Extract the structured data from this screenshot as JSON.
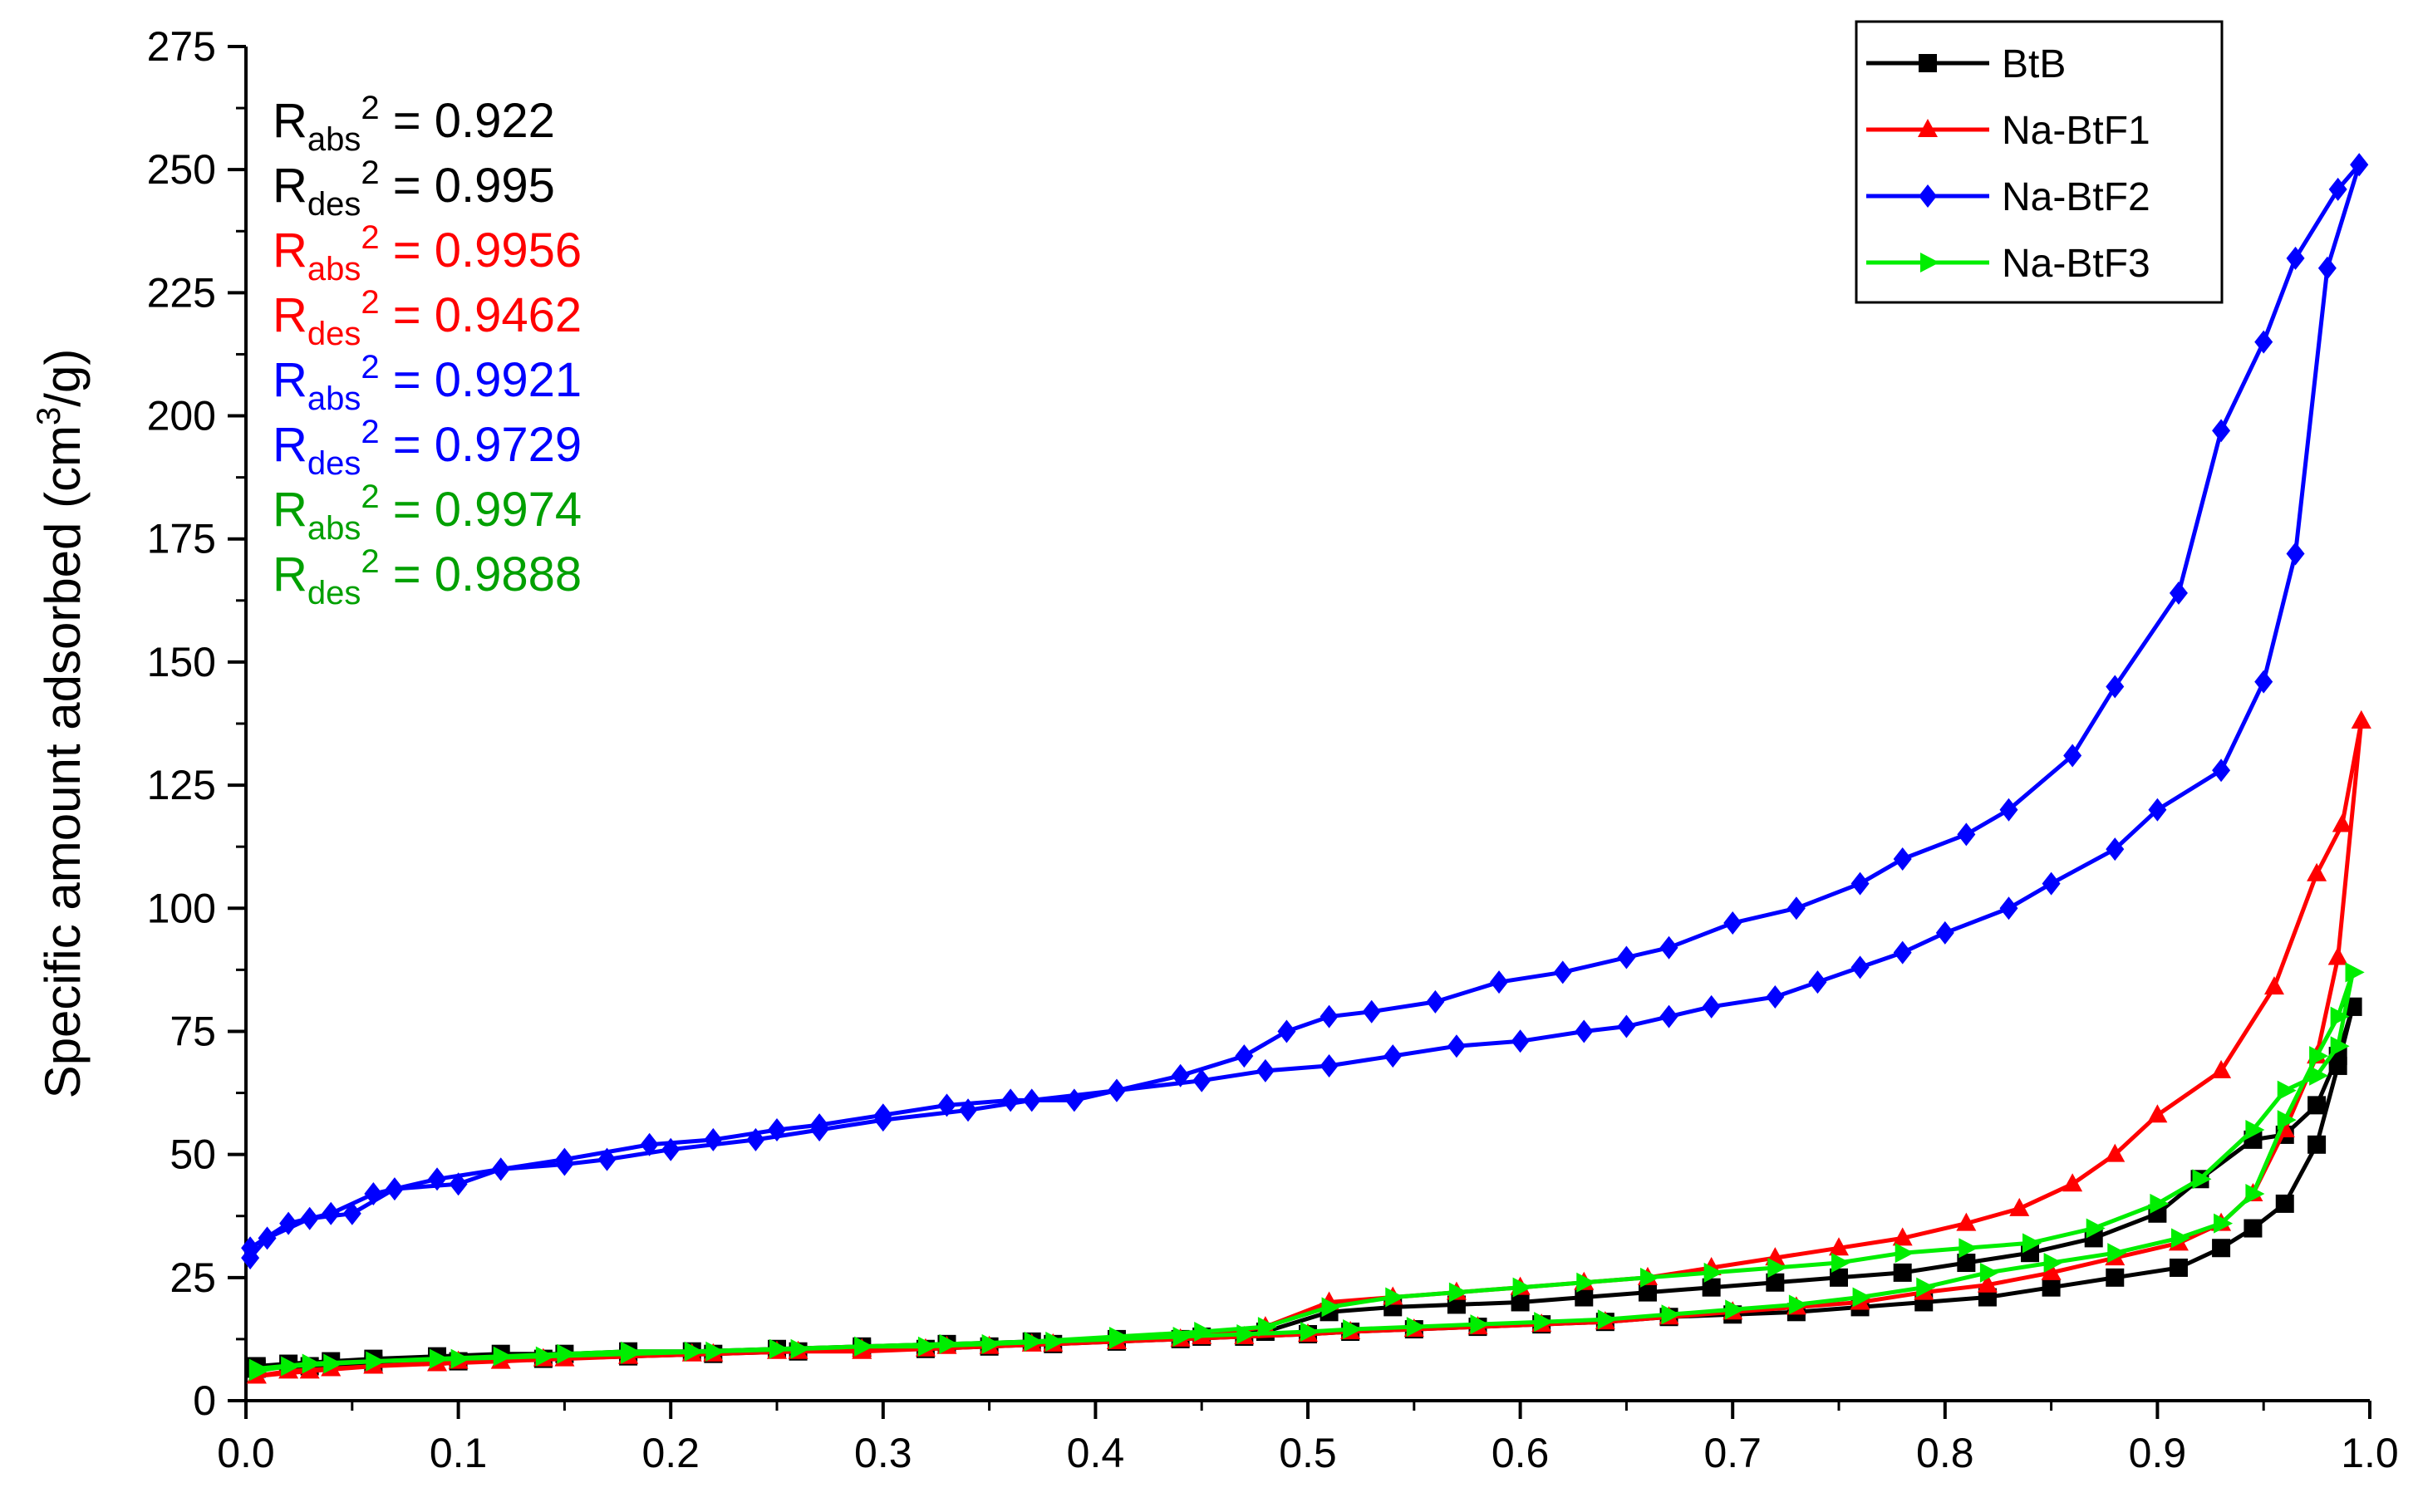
{
  "chart_data": {
    "type": "line",
    "title": "",
    "xlabel": "",
    "ylabel": "Specific amount adsorbed (cm³/g)",
    "xlim": [
      0.0,
      1.0
    ],
    "ylim": [
      0,
      275
    ],
    "x_ticks": [
      "0.0",
      "0.1",
      "0.2",
      "0.3",
      "0.4",
      "0.5",
      "0.6",
      "0.7",
      "0.8",
      "0.9",
      "1.0"
    ],
    "y_ticks": [
      "0",
      "25",
      "50",
      "75",
      "100",
      "125",
      "150",
      "175",
      "200",
      "225",
      "250",
      "275"
    ],
    "legend_position": "top-right",
    "grid": false,
    "annotations": [
      {
        "base": "R",
        "sub": "abs",
        "sup": "2",
        "value": "= 0.922",
        "color": "#000000"
      },
      {
        "base": "R",
        "sub": "des",
        "sup": "2",
        "value": "= 0.995",
        "color": "#000000"
      },
      {
        "base": "R",
        "sub": "abs",
        "sup": "2",
        "value": "= 0.9956",
        "color": "#ff0000"
      },
      {
        "base": "R",
        "sub": "des",
        "sup": "2",
        "value": "= 0.9462",
        "color": "#ff0000"
      },
      {
        "base": "R",
        "sub": "abs",
        "sup": "2",
        "value": "= 0.9921",
        "color": "#0000ff"
      },
      {
        "base": "R",
        "sub": "des",
        "sup": "2",
        "value": "= 0.9729",
        "color": "#0000ff"
      },
      {
        "base": "R",
        "sub": "abs",
        "sup": "2",
        "value": "= 0.9974",
        "color": "#00a000"
      },
      {
        "base": "R",
        "sub": "des",
        "sup": "2",
        "value": "= 0.9888",
        "color": "#00a000"
      }
    ],
    "series": [
      {
        "name": "BtB",
        "color": "#000000",
        "marker": "square",
        "adsorption": {
          "x": [
            0.005,
            0.02,
            0.04,
            0.06,
            0.09,
            0.12,
            0.15,
            0.18,
            0.21,
            0.25,
            0.29,
            0.33,
            0.37,
            0.41,
            0.45,
            0.48,
            0.51,
            0.54,
            0.57,
            0.6,
            0.63,
            0.66,
            0.69,
            0.72,
            0.75,
            0.78,
            0.81,
            0.84,
            0.87,
            0.9,
            0.92,
            0.945,
            0.96,
            0.975,
            0.985,
            0.992
          ],
          "y": [
            7,
            7.5,
            8,
            8.5,
            9,
            9.5,
            9.5,
            10,
            10,
            10.5,
            11,
            11.5,
            12,
            12.5,
            13,
            14,
            18,
            19,
            19.5,
            20,
            21,
            22,
            23,
            24,
            25,
            26,
            28,
            30,
            33,
            38,
            45,
            53,
            54,
            60,
            70,
            80
          ]
        },
        "desorption": {
          "x": [
            0.992,
            0.985,
            0.975,
            0.96,
            0.945,
            0.93,
            0.91,
            0.88,
            0.85,
            0.82,
            0.79,
            0.76,
            0.73,
            0.7,
            0.67,
            0.64,
            0.61,
            0.58,
            0.55,
            0.52,
            0.5,
            0.47,
            0.44,
            0.41,
            0.38,
            0.35,
            0.32,
            0.29,
            0.26,
            0.22,
            0.18,
            0.14,
            0.1,
            0.06,
            0.03,
            0.005
          ],
          "y": [
            80,
            68,
            52,
            40,
            35,
            31,
            27,
            25,
            23,
            21,
            20,
            19,
            18,
            17.5,
            17,
            16,
            15.5,
            15,
            14.5,
            14,
            13.5,
            13,
            12.5,
            12,
            11.5,
            11,
            10.5,
            10.5,
            10,
            9.5,
            9,
            8.5,
            8,
            7.5,
            7,
            6.5
          ]
        }
      },
      {
        "name": "Na-BtF1",
        "color": "#ff0000",
        "marker": "triangle",
        "adsorption": {
          "x": [
            0.005,
            0.02,
            0.04,
            0.06,
            0.09,
            0.12,
            0.15,
            0.18,
            0.21,
            0.25,
            0.29,
            0.33,
            0.37,
            0.41,
            0.45,
            0.48,
            0.51,
            0.54,
            0.57,
            0.6,
            0.63,
            0.66,
            0.69,
            0.72,
            0.75,
            0.78,
            0.81,
            0.835,
            0.86,
            0.88,
            0.9,
            0.93,
            0.955,
            0.975,
            0.987,
            0.996
          ],
          "y": [
            5,
            6,
            6.5,
            7,
            7.5,
            8,
            8.5,
            9,
            9.5,
            10,
            10.5,
            11,
            11.5,
            12,
            13,
            15,
            20,
            21,
            22,
            23,
            24,
            25,
            27,
            29,
            31,
            33,
            36,
            39,
            44,
            50,
            58,
            67,
            84,
            107,
            117,
            138
          ]
        },
        "desorption": {
          "x": [
            0.996,
            0.985,
            0.975,
            0.96,
            0.945,
            0.93,
            0.91,
            0.88,
            0.85,
            0.82,
            0.79,
            0.76,
            0.73,
            0.7,
            0.67,
            0.64,
            0.61,
            0.58,
            0.55,
            0.52,
            0.5,
            0.47,
            0.44,
            0.41,
            0.38,
            0.35,
            0.32,
            0.29,
            0.26,
            0.22,
            0.18,
            0.14,
            0.1,
            0.06,
            0.03,
            0.005
          ],
          "y": [
            138,
            90,
            70,
            55,
            42,
            36,
            32,
            29,
            26,
            23.5,
            22,
            20,
            19,
            18,
            17,
            16,
            15.5,
            15,
            14.5,
            14,
            13.5,
            13,
            12.5,
            12,
            11.5,
            11,
            10.5,
            10,
            10,
            9.5,
            9,
            8.5,
            8,
            7,
            6,
            5
          ]
        }
      },
      {
        "name": "Na-BtF2",
        "color": "#0000ff",
        "marker": "diamond",
        "adsorption": {
          "x": [
            0.002,
            0.01,
            0.03,
            0.05,
            0.07,
            0.1,
            0.12,
            0.15,
            0.17,
            0.2,
            0.24,
            0.27,
            0.3,
            0.34,
            0.37,
            0.41,
            0.45,
            0.48,
            0.51,
            0.54,
            0.57,
            0.6,
            0.63,
            0.65,
            0.67,
            0.69,
            0.72,
            0.74,
            0.76,
            0.78,
            0.8,
            0.83,
            0.85,
            0.88,
            0.9,
            0.93,
            0.95,
            0.965,
            0.98,
            0.995
          ],
          "y": [
            29,
            33,
            37,
            38,
            43,
            44,
            47,
            48,
            49,
            51,
            53,
            55,
            57,
            59,
            61,
            63,
            65,
            67,
            68,
            70,
            72,
            73,
            75,
            76,
            78,
            80,
            82,
            85,
            88,
            91,
            95,
            100,
            105,
            112,
            120,
            128,
            146,
            172,
            230,
            251
          ]
        },
        "desorption": {
          "x": [
            0.995,
            0.985,
            0.965,
            0.95,
            0.93,
            0.91,
            0.88,
            0.86,
            0.83,
            0.81,
            0.78,
            0.76,
            0.73,
            0.7,
            0.67,
            0.65,
            0.62,
            0.59,
            0.56,
            0.53,
            0.51,
            0.49,
            0.47,
            0.44,
            0.41,
            0.39,
            0.36,
            0.33,
            0.3,
            0.27,
            0.25,
            0.22,
            0.19,
            0.15,
            0.12,
            0.09,
            0.06,
            0.04,
            0.02,
            0.002
          ],
          "y": [
            251,
            246,
            232,
            215,
            197,
            164,
            145,
            131,
            120,
            115,
            110,
            105,
            100,
            97,
            92,
            90,
            87,
            85,
            81,
            79,
            78,
            75,
            70,
            66,
            63,
            61,
            61,
            60,
            58,
            56,
            55,
            53,
            52,
            49,
            47,
            45,
            42,
            38,
            36,
            31
          ]
        }
      },
      {
        "name": "Na-BtF3",
        "color": "#00ee00",
        "marker": "right-triangle",
        "adsorption": {
          "x": [
            0.005,
            0.02,
            0.04,
            0.06,
            0.09,
            0.12,
            0.15,
            0.18,
            0.21,
            0.25,
            0.29,
            0.33,
            0.37,
            0.41,
            0.45,
            0.48,
            0.51,
            0.54,
            0.57,
            0.6,
            0.63,
            0.66,
            0.69,
            0.72,
            0.75,
            0.78,
            0.81,
            0.84,
            0.87,
            0.9,
            0.92,
            0.945,
            0.96,
            0.975,
            0.985,
            0.992
          ],
          "y": [
            6,
            7,
            7.5,
            8,
            8.5,
            9,
            9.5,
            10,
            10,
            10.5,
            11,
            11.5,
            12,
            13,
            14,
            15,
            19,
            21,
            22,
            23,
            24,
            25,
            26,
            27,
            28,
            30,
            31,
            32,
            35,
            40,
            45,
            55,
            63,
            66,
            72,
            87
          ]
        },
        "desorption": {
          "x": [
            0.992,
            0.985,
            0.975,
            0.96,
            0.945,
            0.93,
            0.91,
            0.88,
            0.85,
            0.82,
            0.79,
            0.76,
            0.73,
            0.7,
            0.67,
            0.64,
            0.61,
            0.58,
            0.55,
            0.52,
            0.5,
            0.47,
            0.44,
            0.41,
            0.38,
            0.35,
            0.32,
            0.29,
            0.26,
            0.22,
            0.18,
            0.14,
            0.1,
            0.06,
            0.03,
            0.005
          ],
          "y": [
            87,
            78,
            70,
            57,
            42,
            36,
            33,
            30,
            28,
            26,
            23,
            21,
            19.5,
            18.5,
            17.5,
            16.5,
            16,
            15.5,
            15,
            14.5,
            14,
            13.5,
            13,
            12.5,
            12,
            11.5,
            11,
            11,
            10.5,
            10,
            9.5,
            9,
            8.5,
            8,
            7.5,
            6.5
          ]
        }
      }
    ]
  }
}
